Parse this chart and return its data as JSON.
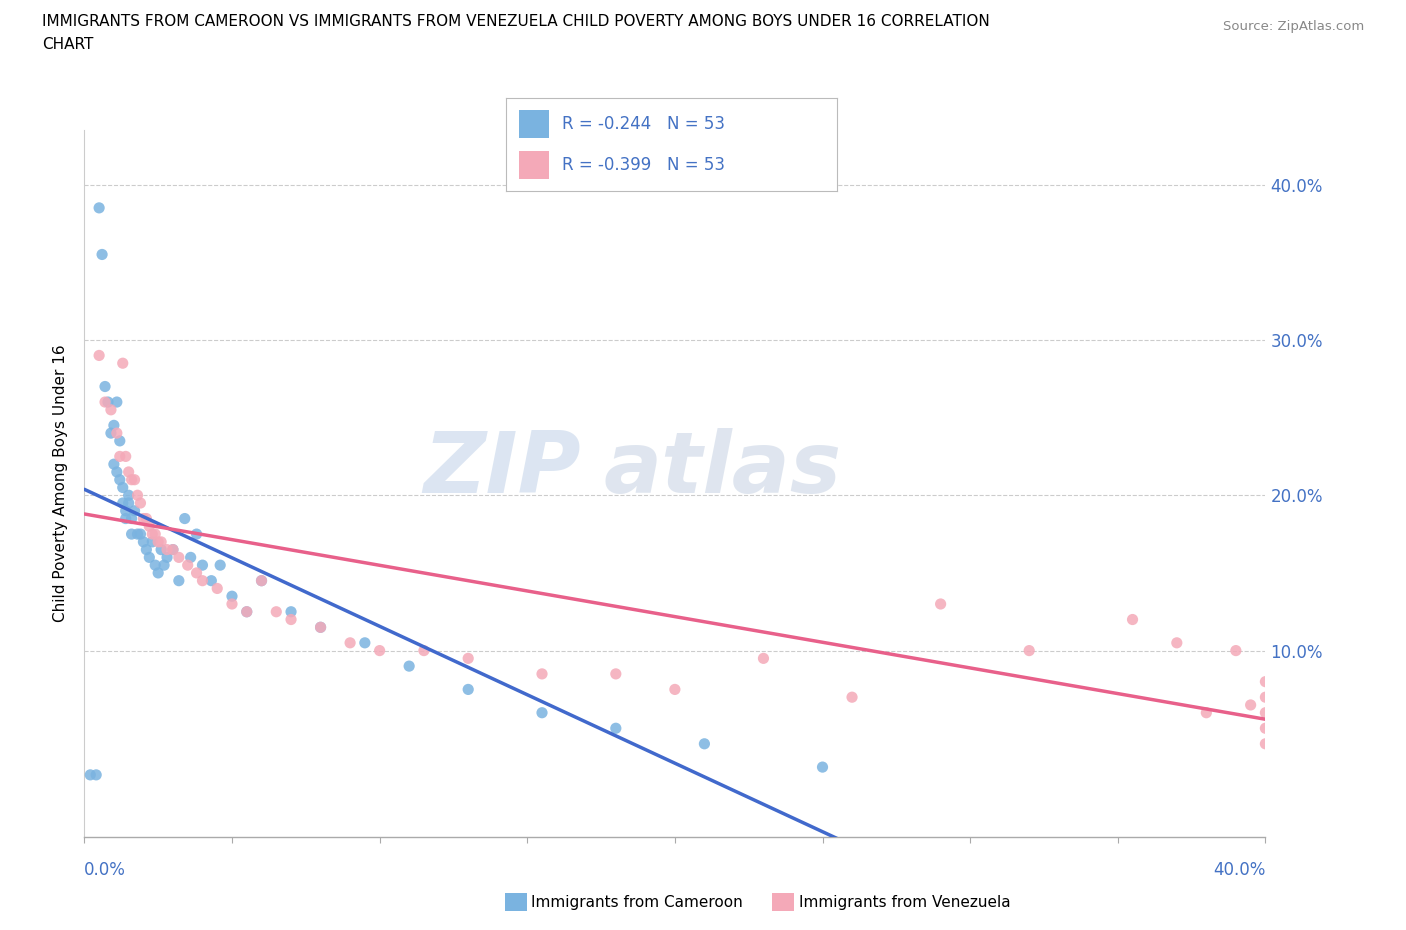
{
  "title_line1": "IMMIGRANTS FROM CAMEROON VS IMMIGRANTS FROM VENEZUELA CHILD POVERTY AMONG BOYS UNDER 16 CORRELATION",
  "title_line2": "CHART",
  "source": "Source: ZipAtlas.com",
  "ylabel": "Child Poverty Among Boys Under 16",
  "xlim": [
    0.0,
    0.4
  ],
  "ylim": [
    -0.02,
    0.435
  ],
  "ytick_positions": [
    0.0,
    0.1,
    0.2,
    0.3,
    0.4
  ],
  "ytick_labels": [
    "",
    "10.0%",
    "20.0%",
    "30.0%",
    "40.0%"
  ],
  "color_cameroon": "#7ab3e0",
  "color_venezuela": "#f4a9b8",
  "color_line_cameroon": "#4169cc",
  "color_line_venezuela": "#e8608a",
  "color_axis_labels": "#4472c4",
  "legend_text_1": "R = -0.244   N = 53",
  "legend_text_2": "R = -0.399   N = 53",
  "watermark_zip": "ZIP",
  "watermark_atlas": "atlas",
  "bottom_label_cam": "Immigrants from Cameroon",
  "bottom_label_ven": "Immigrants from Venezuela",
  "cameroon_x": [
    0.002,
    0.004,
    0.005,
    0.006,
    0.007,
    0.008,
    0.009,
    0.01,
    0.01,
    0.011,
    0.011,
    0.012,
    0.012,
    0.013,
    0.013,
    0.014,
    0.014,
    0.015,
    0.015,
    0.016,
    0.016,
    0.017,
    0.018,
    0.019,
    0.02,
    0.021,
    0.022,
    0.023,
    0.024,
    0.025,
    0.026,
    0.027,
    0.028,
    0.03,
    0.032,
    0.034,
    0.036,
    0.038,
    0.04,
    0.043,
    0.046,
    0.05,
    0.055,
    0.06,
    0.07,
    0.08,
    0.095,
    0.11,
    0.13,
    0.155,
    0.18,
    0.21,
    0.25
  ],
  "cameroon_y": [
    0.02,
    0.02,
    0.385,
    0.355,
    0.27,
    0.26,
    0.24,
    0.245,
    0.22,
    0.26,
    0.215,
    0.235,
    0.21,
    0.205,
    0.195,
    0.19,
    0.185,
    0.2,
    0.195,
    0.185,
    0.175,
    0.19,
    0.175,
    0.175,
    0.17,
    0.165,
    0.16,
    0.17,
    0.155,
    0.15,
    0.165,
    0.155,
    0.16,
    0.165,
    0.145,
    0.185,
    0.16,
    0.175,
    0.155,
    0.145,
    0.155,
    0.135,
    0.125,
    0.145,
    0.125,
    0.115,
    0.105,
    0.09,
    0.075,
    0.06,
    0.05,
    0.04,
    0.025
  ],
  "venezuela_x": [
    0.005,
    0.007,
    0.009,
    0.011,
    0.012,
    0.013,
    0.014,
    0.015,
    0.016,
    0.017,
    0.018,
    0.019,
    0.02,
    0.021,
    0.022,
    0.023,
    0.024,
    0.025,
    0.026,
    0.028,
    0.03,
    0.032,
    0.035,
    0.038,
    0.04,
    0.045,
    0.05,
    0.055,
    0.06,
    0.065,
    0.07,
    0.08,
    0.09,
    0.1,
    0.115,
    0.13,
    0.155,
    0.18,
    0.2,
    0.23,
    0.26,
    0.29,
    0.32,
    0.355,
    0.37,
    0.38,
    0.39,
    0.395,
    0.4,
    0.4,
    0.4,
    0.4,
    0.4
  ],
  "venezuela_y": [
    0.29,
    0.26,
    0.255,
    0.24,
    0.225,
    0.285,
    0.225,
    0.215,
    0.21,
    0.21,
    0.2,
    0.195,
    0.185,
    0.185,
    0.18,
    0.175,
    0.175,
    0.17,
    0.17,
    0.165,
    0.165,
    0.16,
    0.155,
    0.15,
    0.145,
    0.14,
    0.13,
    0.125,
    0.145,
    0.125,
    0.12,
    0.115,
    0.105,
    0.1,
    0.1,
    0.095,
    0.085,
    0.085,
    0.075,
    0.095,
    0.07,
    0.13,
    0.1,
    0.12,
    0.105,
    0.06,
    0.1,
    0.065,
    0.08,
    0.07,
    0.06,
    0.05,
    0.04
  ]
}
